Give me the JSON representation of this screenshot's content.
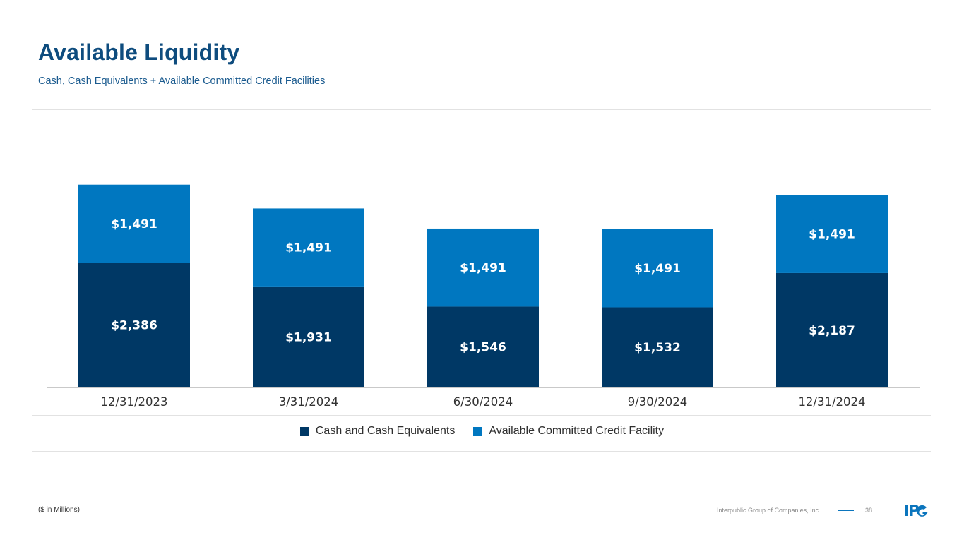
{
  "header": {
    "title": "Available Liquidity",
    "subtitle": "Cash, Cash Equivalents + Available Committed Credit Facilities"
  },
  "footer": {
    "note": "($ in Millions)",
    "company": "Interpublic Group of Companies, Inc.",
    "page_number": "38"
  },
  "colors": {
    "cash": "#003865",
    "credit": "#0077c0",
    "title": "#0e4c7e",
    "axis_text": "#333333"
  },
  "chart_data": {
    "type": "bar",
    "stacked": true,
    "title": "Available Liquidity",
    "subtitle": "Cash, Cash Equivalents + Available Committed Credit Facilities",
    "units": "$ in Millions",
    "categories": [
      "12/31/2023",
      "3/31/2024",
      "6/30/2024",
      "9/30/2024",
      "12/31/2024"
    ],
    "series": [
      {
        "name": "Cash and Cash Equivalents",
        "values": [
          2386,
          1931,
          1546,
          1532,
          2187
        ],
        "labels": [
          "$2,386",
          "$1,931",
          "$1,546",
          "$1,532",
          "$2,187"
        ],
        "color": "#003865"
      },
      {
        "name": "Available Committed Credit Facility",
        "values": [
          1491,
          1491,
          1491,
          1491,
          1491
        ],
        "labels": [
          "$1,491",
          "$1,491",
          "$1,491",
          "$1,491",
          "$1,491"
        ],
        "color": "#0077c0"
      }
    ],
    "ylim": [
      0,
      4000
    ],
    "grid": false,
    "legend": "bottom-center"
  }
}
